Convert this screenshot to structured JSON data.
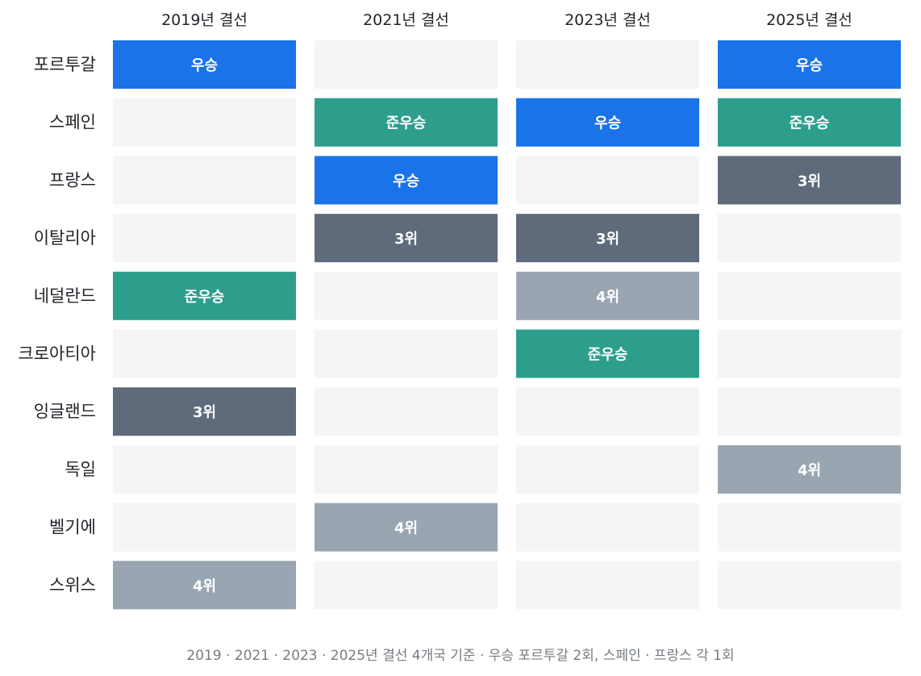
{
  "chart_data": {
    "type": "table",
    "columns": [
      "2019년 결선",
      "2021년 결선",
      "2023년 결선",
      "2025년 결선"
    ],
    "rows": [
      "포르투갈",
      "스페인",
      "프랑스",
      "이탈리아",
      "네덜란드",
      "크로아티아",
      "잉글랜드",
      "독일",
      "벨기에",
      "스위스"
    ],
    "cells": [
      [
        "우승",
        "",
        "",
        "우승"
      ],
      [
        "",
        "준우승",
        "우승",
        "준우승"
      ],
      [
        "",
        "우승",
        "",
        "3위"
      ],
      [
        "",
        "3위",
        "3위",
        ""
      ],
      [
        "준우승",
        "",
        "4위",
        ""
      ],
      [
        "",
        "",
        "준우승",
        ""
      ],
      [
        "3위",
        "",
        "",
        ""
      ],
      [
        "",
        "",
        "",
        "4위"
      ],
      [
        "",
        "4위",
        "",
        ""
      ],
      [
        "4위",
        "",
        "",
        ""
      ]
    ],
    "colors": {
      "우승": "#1a73e8",
      "준우승": "#2e9e8c",
      "3위": "#5f6b7a",
      "4위": "#99a6b2",
      "empty": "#f4f5f7"
    }
  },
  "footnote": "2019 · 2021 · 2023 · 2025년 결선 4개국 기준  ·  우승 포르투갈 2회, 스페인 · 프랑스 각 1회"
}
